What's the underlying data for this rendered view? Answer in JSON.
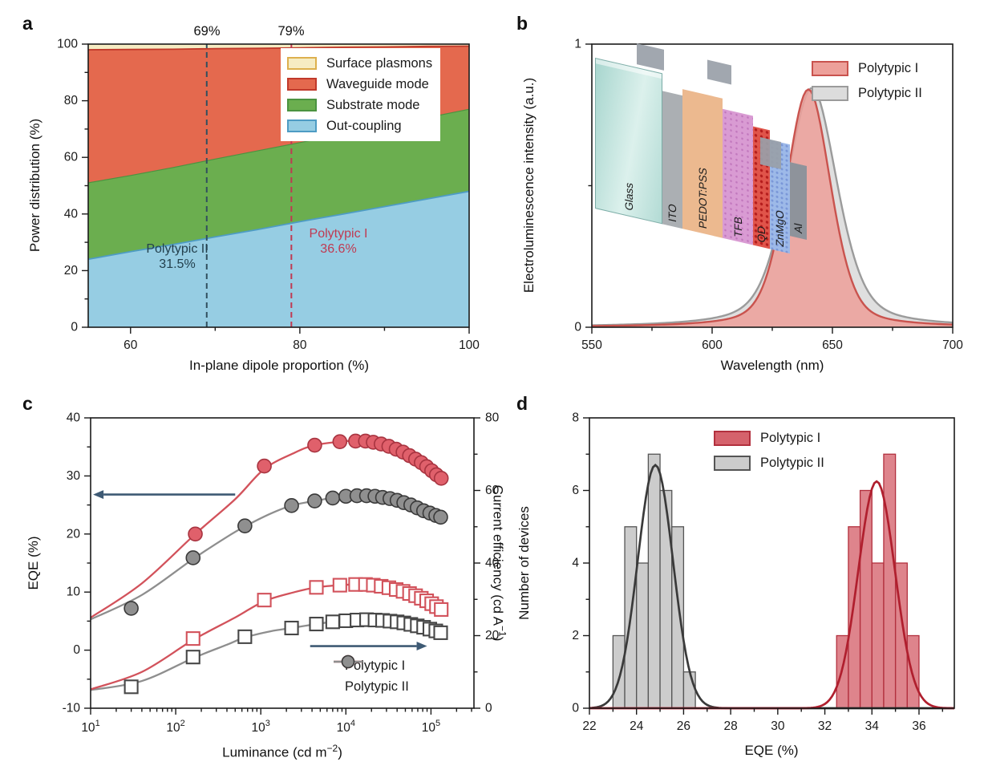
{
  "figure": {
    "panels": [
      {
        "id": "a",
        "letter": "a"
      },
      {
        "id": "b",
        "letter": "b"
      },
      {
        "id": "c",
        "letter": "c"
      },
      {
        "id": "d",
        "letter": "d"
      }
    ],
    "ink_color": "#1a1a1a"
  },
  "chart_data": [
    {
      "id": "a",
      "type": "area",
      "stacked": true,
      "xlabel": "In-plane dipole proportion (%)",
      "ylabel": "Power distribution (%)",
      "xlim": [
        55,
        100
      ],
      "ylim": [
        0,
        100
      ],
      "xticks": {
        "major": [
          60,
          80,
          100
        ],
        "minor": [
          70,
          90
        ]
      },
      "yticks": {
        "major": [
          0,
          20,
          40,
          60,
          80,
          100
        ],
        "minor": [
          10,
          30,
          50,
          70,
          90
        ]
      },
      "x": [
        55,
        60,
        65,
        70,
        75,
        80,
        85,
        90,
        95,
        100
      ],
      "series": [
        {
          "name": "Out-coupling",
          "boundary": [
            24,
            26.7,
            29.2,
            31.9,
            34.5,
            37.3,
            39.9,
            42.6,
            45.3,
            48
          ],
          "fill": "#96CDE3",
          "edge": "#4E9CC4",
          "edge_width": 1.8
        },
        {
          "name": "Substrate mode",
          "boundary": [
            51,
            53.6,
            56.4,
            59.4,
            62.3,
            65.2,
            68.2,
            71.1,
            74,
            77
          ],
          "fill": "#6BAE4F",
          "edge": "#4B9340",
          "edge_width": 1.2
        },
        {
          "name": "Waveguide mode",
          "boundary": [
            98,
            98.1,
            98.2,
            98.4,
            98.5,
            98.7,
            98.9,
            99,
            99.2,
            99.3
          ],
          "fill": "#E4694E",
          "edge": "#C0392B",
          "edge_width": 1.8
        },
        {
          "name": "Surface plasmons",
          "boundary": [
            100,
            100,
            100,
            100,
            100,
            100,
            100,
            100,
            100,
            100
          ],
          "fill": "#F6ECC3",
          "edge": "#DDB04E",
          "edge_width": 0
        }
      ],
      "legend": [
        {
          "label": "Surface plasmons",
          "fill": "#F6ECC3",
          "edge": "#DDB04E"
        },
        {
          "label": "Waveguide mode",
          "fill": "#E4694E",
          "edge": "#C0392B"
        },
        {
          "label": "Substrate mode",
          "fill": "#6BAE4F",
          "edge": "#4B9340"
        },
        {
          "label": "Out-coupling",
          "fill": "#96CDE3",
          "edge": "#4E9CC4"
        }
      ],
      "annotations": {
        "line_ii": {
          "x": 69,
          "top_label": "69%",
          "name": "Polytypic II",
          "value": "31.5%",
          "color": "#23404D",
          "dash_color": "#31505E"
        },
        "line_i": {
          "x": 79,
          "top_label": "79%",
          "name": "Polytypic I",
          "value": "36.6%",
          "color": "#C03A52",
          "dash_color": "#C03A52"
        }
      }
    },
    {
      "id": "b",
      "type": "area",
      "xlabel": "Wavelength (nm)",
      "ylabel": "Electroluminescence intensity (a.u.)",
      "xlim": [
        550,
        700
      ],
      "ylim": [
        0,
        1
      ],
      "xticks": {
        "major": [
          550,
          600,
          650,
          700
        ],
        "minor": [
          575,
          625,
          675
        ]
      },
      "yticks": {
        "major": [
          0,
          1
        ],
        "minor": [
          0.5
        ]
      },
      "series": [
        {
          "name": "Polytypic II",
          "peak_nm": 641.5,
          "fwhm_nm": 25,
          "peak_intensity": 0.845,
          "lorentz_fraction": 0.45,
          "stroke": "#9B9B9B",
          "fill": "#DCDCDC",
          "fill_opacity": 0.9
        },
        {
          "name": "Polytypic I",
          "peak_nm": 640,
          "fwhm_nm": 22,
          "peak_intensity": 0.84,
          "lorentz_fraction": 0.35,
          "stroke": "#C9534E",
          "fill": "#EDA09A",
          "fill_opacity": 0.85
        }
      ],
      "legend": [
        {
          "label": "Polytypic I",
          "fill": "#EDA09A",
          "edge": "#C9534E"
        },
        {
          "label": "Polytypic II",
          "fill": "#DCDCDC",
          "edge": "#9B9B9B"
        }
      ],
      "inset_layers": [
        {
          "label": "Glass"
        },
        {
          "label": "ITO"
        },
        {
          "label": "PEDOT:PSS"
        },
        {
          "label": "TFB"
        },
        {
          "label": "QD"
        },
        {
          "label": "ZnMgO"
        },
        {
          "label": "Al"
        }
      ]
    },
    {
      "id": "c",
      "type": "line",
      "xscale": "log",
      "xlabel": "Luminance (cd m⁻²)",
      "xlabel_parts": {
        "pre": "Luminance (cd m",
        "sup": "−2",
        "post": ")"
      },
      "ylabel_left": "EQE (%)",
      "ylabel_right": "Current efficiency (cd A⁻¹)",
      "ylabel_right_parts": {
        "pre": "Current efficiency (cd A",
        "sup": "−1",
        "post": ")"
      },
      "xlim": [
        10,
        320000
      ],
      "ylim_left": [
        -10,
        40
      ],
      "ylim_right": [
        0,
        80
      ],
      "xticks": {
        "major_exponents": [
          1,
          2,
          3,
          4,
          5
        ]
      },
      "yticks_left": {
        "major": [
          -10,
          0,
          10,
          20,
          30,
          40
        ],
        "minor": [
          -5,
          5,
          15,
          25,
          35
        ]
      },
      "yticks_right": {
        "major": [
          0,
          20,
          40,
          60,
          80
        ],
        "minor": [
          10,
          30,
          50,
          70
        ]
      },
      "series": [
        {
          "name": "Polytypic II EQE",
          "axis": "left",
          "marker": "circle",
          "line_color": "#8E8E8E",
          "marker_fill": "#8F8F8F",
          "marker_edge": "#3A3A3A",
          "fit_line": [
            [
              10,
              5.3
            ],
            [
              40,
              9.5
            ],
            [
              160,
              15.7
            ],
            [
              400,
              19.5
            ],
            [
              650,
              21.3
            ],
            [
              1300,
              23.5
            ],
            [
              2300,
              24.9
            ],
            [
              4300,
              25.7
            ],
            [
              7000,
              26.2
            ],
            [
              13500,
              26.6
            ],
            [
              22000,
              26.5
            ],
            [
              33000,
              26.1
            ],
            [
              48000,
              25.4
            ],
            [
              69000,
              24.5
            ],
            [
              97000,
              23.6
            ],
            [
              135000,
              22.8
            ]
          ],
          "points": [
            [
              30,
              7.2
            ],
            [
              160,
              15.9
            ],
            [
              650,
              21.4
            ],
            [
              2300,
              24.9
            ],
            [
              4300,
              25.7
            ],
            [
              7000,
              26.2
            ],
            [
              10000,
              26.5
            ],
            [
              13500,
              26.6
            ],
            [
              17500,
              26.6
            ],
            [
              22000,
              26.5
            ],
            [
              27000,
              26.3
            ],
            [
              33000,
              26.1
            ],
            [
              40000,
              25.8
            ],
            [
              48000,
              25.4
            ],
            [
              58000,
              25.0
            ],
            [
              69000,
              24.5
            ],
            [
              82000,
              24.0
            ],
            [
              97000,
              23.6
            ],
            [
              114000,
              23.2
            ],
            [
              130000,
              22.9
            ]
          ]
        },
        {
          "name": "Polytypic I EQE",
          "axis": "left",
          "marker": "circle",
          "line_color": "#D2525B",
          "marker_fill": "#E0606B",
          "marker_edge": "#A83440",
          "fit_line": [
            [
              10,
              5.6
            ],
            [
              40,
              11.5
            ],
            [
              170,
              20
            ],
            [
              500,
              26
            ],
            [
              1100,
              31.2
            ],
            [
              2500,
              34
            ],
            [
              4300,
              35.3
            ],
            [
              8500,
              35.9
            ],
            [
              13000,
              36.05
            ],
            [
              21000,
              35.8
            ],
            [
              32000,
              35.1
            ],
            [
              47000,
              34.1
            ],
            [
              66000,
              32.9
            ],
            [
              89000,
              31.6
            ],
            [
              116000,
              30.2
            ],
            [
              140000,
              29.2
            ]
          ],
          "points": [
            [
              170,
              20
            ],
            [
              1100,
              31.7
            ],
            [
              4300,
              35.3
            ],
            [
              8500,
              35.9
            ],
            [
              13000,
              36.0
            ],
            [
              17000,
              36.0
            ],
            [
              21000,
              35.8
            ],
            [
              26000,
              35.5
            ],
            [
              32000,
              35.1
            ],
            [
              39000,
              34.6
            ],
            [
              47000,
              34.1
            ],
            [
              56000,
              33.5
            ],
            [
              66000,
              32.9
            ],
            [
              77000,
              32.3
            ],
            [
              89000,
              31.6
            ],
            [
              102000,
              30.9
            ],
            [
              116000,
              30.2
            ],
            [
              132000,
              29.6
            ]
          ]
        },
        {
          "name": "Polytypic II current efficiency",
          "axis": "right",
          "marker": "square",
          "line_color": "#8E8E8E",
          "marker_fill": "#FFFFFF",
          "marker_edge": "#474747",
          "fit_line": [
            [
              10,
              5.0
            ],
            [
              40,
              7.5
            ],
            [
              160,
              13.8
            ],
            [
              400,
              17.5
            ],
            [
              650,
              19.5
            ],
            [
              1300,
              21.2
            ],
            [
              2300,
              22.1
            ],
            [
              4500,
              23.2
            ],
            [
              7000,
              23.8
            ],
            [
              13500,
              24.3
            ],
            [
              22000,
              24.3
            ],
            [
              33000,
              24.0
            ],
            [
              48000,
              23.5
            ],
            [
              69000,
              22.7
            ],
            [
              97000,
              21.8
            ],
            [
              135000,
              20.6
            ]
          ],
          "points": [
            [
              30,
              5.9
            ],
            [
              160,
              14.1
            ],
            [
              650,
              19.7
            ],
            [
              2300,
              22.1
            ],
            [
              4500,
              23.2
            ],
            [
              7000,
              23.8
            ],
            [
              10000,
              24.1
            ],
            [
              13500,
              24.3
            ],
            [
              17500,
              24.4
            ],
            [
              22000,
              24.3
            ],
            [
              27000,
              24.2
            ],
            [
              33000,
              24.0
            ],
            [
              40000,
              23.8
            ],
            [
              48000,
              23.5
            ],
            [
              58000,
              23.1
            ],
            [
              69000,
              22.7
            ],
            [
              82000,
              22.3
            ],
            [
              97000,
              21.8
            ],
            [
              114000,
              21.3
            ],
            [
              130000,
              20.8
            ]
          ]
        },
        {
          "name": "Polytypic I current efficiency",
          "axis": "right",
          "marker": "square",
          "line_color": "#D2525B",
          "marker_fill": "#FFFFFF",
          "marker_edge": "#D2525B",
          "fit_line": [
            [
              10,
              5.2
            ],
            [
              40,
              10
            ],
            [
              160,
              18.8
            ],
            [
              500,
              25
            ],
            [
              1100,
              29.5
            ],
            [
              2500,
              32
            ],
            [
              4500,
              33.3
            ],
            [
              8500,
              33.9
            ],
            [
              13000,
              34.1
            ],
            [
              21000,
              33.9
            ],
            [
              32000,
              33.2
            ],
            [
              47000,
              32.2
            ],
            [
              66000,
              31.0
            ],
            [
              89000,
              29.6
            ],
            [
              116000,
              28.0
            ],
            [
              140000,
              26.8
            ]
          ],
          "points": [
            [
              160,
              19.2
            ],
            [
              1100,
              29.8
            ],
            [
              4500,
              33.3
            ],
            [
              8500,
              33.9
            ],
            [
              13000,
              34.1
            ],
            [
              17000,
              34.1
            ],
            [
              21000,
              33.9
            ],
            [
              26000,
              33.6
            ],
            [
              32000,
              33.2
            ],
            [
              39000,
              32.7
            ],
            [
              47000,
              32.2
            ],
            [
              56000,
              31.6
            ],
            [
              66000,
              31.0
            ],
            [
              77000,
              30.3
            ],
            [
              89000,
              29.6
            ],
            [
              102000,
              28.8
            ],
            [
              116000,
              28.0
            ],
            [
              132000,
              27.2
            ]
          ]
        }
      ],
      "arrows": [
        {
          "dir": "left",
          "x_from": 500,
          "x_to": 10.7,
          "y_left": 26.8,
          "color": "#3E5A74"
        },
        {
          "dir": "right",
          "x_from": 3800,
          "x_to": 90000,
          "y_left": 0.7,
          "color": "#3E5A74"
        }
      ],
      "legend": [
        {
          "label": "Polytypic I",
          "line": "#D2525B",
          "fill": "#E0606B",
          "edge": "#A83440"
        },
        {
          "label": "Polytypic II",
          "line": "#8E8E8E",
          "fill": "#8F8F8F",
          "edge": "#3A3A3A"
        }
      ]
    },
    {
      "id": "d",
      "type": "bar",
      "xlabel": "EQE (%)",
      "ylabel": "Number of devices",
      "xlim": [
        22,
        37.5
      ],
      "ylim": [
        0,
        8
      ],
      "xticks": {
        "major": [
          22,
          24,
          26,
          28,
          30,
          32,
          34,
          36
        ],
        "minor": [
          23,
          25,
          27,
          29,
          31,
          33,
          35,
          37
        ]
      },
      "yticks": {
        "major": [
          0,
          2,
          4,
          6,
          8
        ],
        "minor": [
          1,
          3,
          5,
          7
        ]
      },
      "series": [
        {
          "name": "Polytypic II",
          "bin_start": 23,
          "bin_width": 0.5,
          "counts": [
            2,
            5,
            4,
            7,
            6,
            5,
            1
          ],
          "fill": "#C9C9C9",
          "fill_opacity": 0.95,
          "edge": "#555555",
          "curve": {
            "mean": 24.8,
            "sigma": 0.75,
            "amp": 6.7,
            "color": "#3A3A3A"
          }
        },
        {
          "name": "Polytypic I",
          "bin_start": 32.5,
          "bin_width": 0.5,
          "counts": [
            2,
            5,
            6,
            4,
            7,
            4,
            2
          ],
          "fill": "#D5626C",
          "fill_opacity": 0.78,
          "edge": "#B2303E",
          "curve": {
            "mean": 34.2,
            "sigma": 0.78,
            "amp": 6.25,
            "color": "#B01F2E"
          }
        }
      ],
      "legend": [
        {
          "label": "Polytypic I",
          "fill": "#D5626C",
          "edge": "#B2303E"
        },
        {
          "label": "Polytypic II",
          "fill": "#CCCCCC",
          "edge": "#555555"
        }
      ]
    }
  ]
}
